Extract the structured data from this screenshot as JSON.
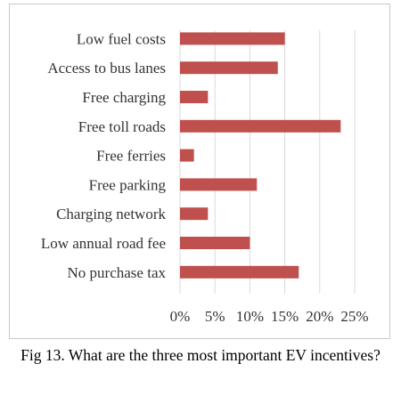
{
  "caption": "Fig 13. What are the three most important EV incentives?",
  "chart_data": {
    "type": "bar",
    "orientation": "horizontal",
    "title": "",
    "xlabel": "",
    "ylabel": "",
    "categories": [
      "Low fuel costs",
      "Access to bus lanes",
      "Free charging",
      "Free toll roads",
      "Free ferries",
      "Free parking",
      "Charging network",
      "Low annual road fee",
      "No purchase tax"
    ],
    "values": [
      15,
      14,
      4,
      23,
      2,
      11,
      4,
      10,
      17
    ],
    "unit": "%",
    "xlim": [
      0,
      25
    ],
    "x_ticks": [
      "0%",
      "5%",
      "10%",
      "15%",
      "20%",
      "25%"
    ],
    "grid": "vertical",
    "legend": "none",
    "bar_color": "#c0504d",
    "grid_color": "#d9d9d9"
  }
}
